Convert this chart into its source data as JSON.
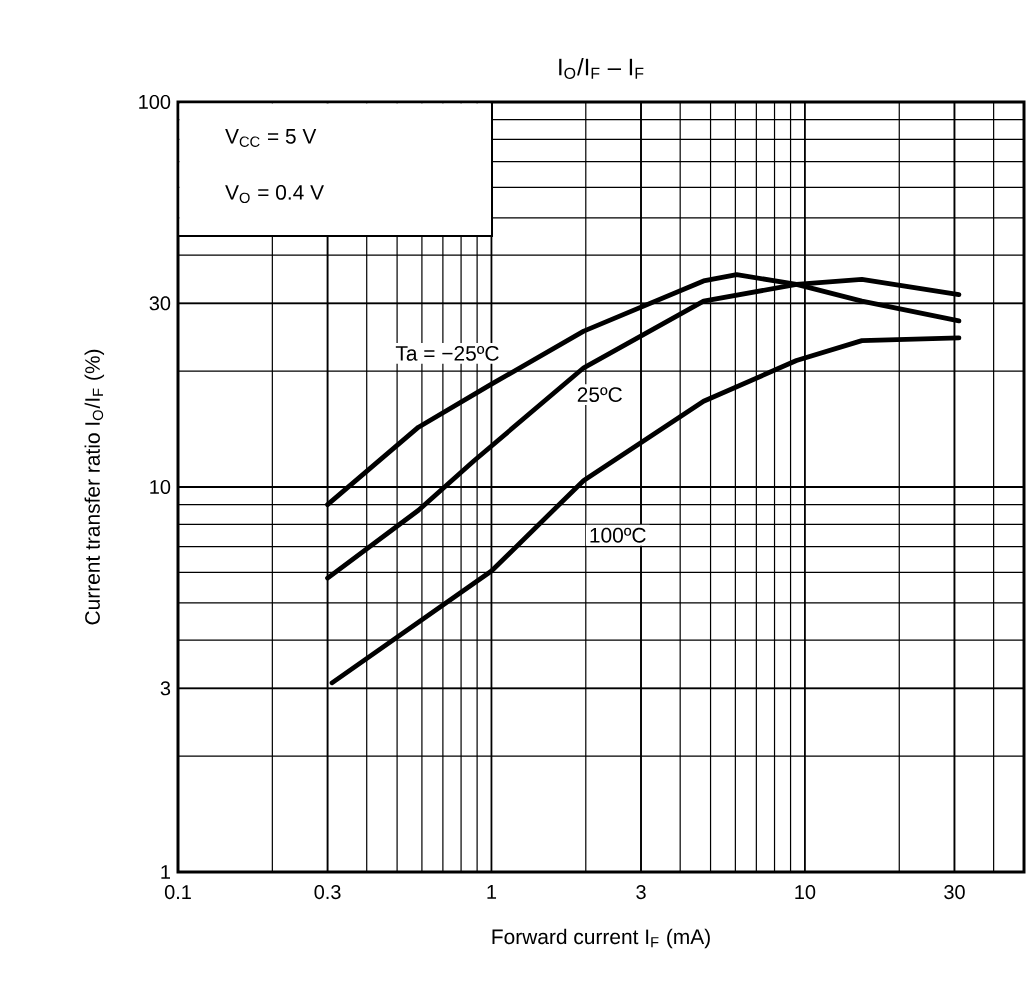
{
  "chart_data": {
    "type": "line",
    "title": "I$_{O}$/I$_{F}$ – I$_{F}$",
    "xlabel": "Forward current   I$_{F}$   (mA)",
    "ylabel": "Current transfer ratio   I$_{O}$/I$_{F}$   (%)",
    "annotations": [
      "V$_{CC}$ = 5 V",
      "V$_{O}$ = 0.4 V"
    ],
    "log": "xy",
    "grid": true,
    "xlim": [
      0.1,
      50
    ],
    "ylim": [
      1,
      100
    ],
    "xticks": [
      0.1,
      0.3,
      1,
      3,
      10,
      30
    ],
    "yticks": [
      1,
      3,
      10,
      30,
      100
    ],
    "series": [
      {
        "name": "Ta = −25ºC",
        "color": "#000000",
        "x": [
          0.3,
          0.585,
          1,
          1.97,
          4.75,
          6.06,
          9.4,
          15.2,
          31
        ],
        "values": [
          9.0,
          14.3,
          18.5,
          25.4,
          34.3,
          35.6,
          33.6,
          30.4,
          27
        ]
      },
      {
        "name": "25ºC",
        "color": "#000000",
        "x": [
          0.3,
          0.585,
          0.88,
          1.97,
          4.75,
          9.4,
          15.2,
          31
        ],
        "values": [
          5.8,
          8.7,
          11.7,
          20.4,
          30.4,
          33.6,
          34.6,
          31.6
        ]
      },
      {
        "name": "100ºC",
        "color": "#000000",
        "x": [
          0.31,
          1,
          1.97,
          4.75,
          9.4,
          15.2,
          31
        ],
        "values": [
          3.1,
          6.05,
          10.4,
          16.7,
          21.3,
          24.0,
          24.4
        ]
      }
    ]
  }
}
